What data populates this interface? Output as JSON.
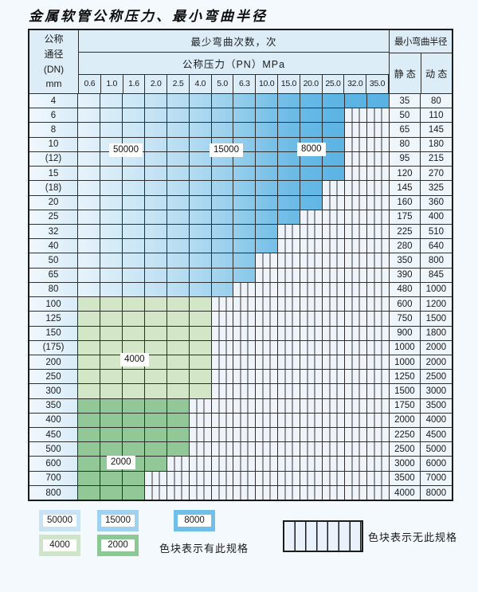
{
  "title": "金属软管公称压力、最小弯曲半径",
  "header": {
    "dn_lines": [
      "公称",
      "通径",
      "(DN)",
      "mm"
    ],
    "cycles_title": "最少弯曲次数，次",
    "pressure_title": "公称压力（PN）MPa",
    "pressures": [
      "0.6",
      "1.0",
      "1.6",
      "2.0",
      "2.5",
      "4.0",
      "5.0",
      "6.3",
      "10.0",
      "15.0",
      "20.0",
      "25.0",
      "32.0",
      "35.0"
    ],
    "radius_title": "最小弯曲半径",
    "static_label": "静 态",
    "dynamic_label": "动 态"
  },
  "colors": {
    "blue_boundaries": [
      "#e7f3fb",
      "#dceef9",
      "#d2eaf7",
      "#c8e5f5",
      "#bee0f3",
      "#b3dbf1",
      "#a6d5ef",
      "#97cfec",
      "#86c7ea",
      "#75bfe7",
      "#69bae6",
      "#60b6e4",
      "#5cb4e3",
      "#5ab3e3",
      "#58b2e2"
    ],
    "green_light": "#d3e6c8",
    "green_dark": "#92c897",
    "legend_blue_50000": "#c7e3f5",
    "legend_blue_15000": "#9fd2ef",
    "legend_blue_8000": "#6fbfe8",
    "legend_green_4000": "#cfe5ca",
    "legend_green_2000": "#8cc893",
    "hatch_bg": "#eef4fa",
    "grid": "#2e2e2e"
  },
  "rows": [
    {
      "dn": "4",
      "max_pn": "35.0",
      "shade": "blue",
      "static": "35",
      "dynamic": "80"
    },
    {
      "dn": "6",
      "max_pn": "25.0",
      "shade": "blue",
      "static": "50",
      "dynamic": "110"
    },
    {
      "dn": "8",
      "max_pn": "25.0",
      "shade": "blue",
      "static": "65",
      "dynamic": "145"
    },
    {
      "dn": "10",
      "max_pn": "25.0",
      "shade": "blue",
      "static": "80",
      "dynamic": "180"
    },
    {
      "dn": "(12)",
      "max_pn": "25.0",
      "shade": "blue",
      "static": "95",
      "dynamic": "215"
    },
    {
      "dn": "15",
      "max_pn": "25.0",
      "shade": "blue",
      "static": "120",
      "dynamic": "270"
    },
    {
      "dn": "(18)",
      "max_pn": "20.0",
      "shade": "blue",
      "static": "145",
      "dynamic": "325"
    },
    {
      "dn": "20",
      "max_pn": "20.0",
      "shade": "blue",
      "static": "160",
      "dynamic": "360"
    },
    {
      "dn": "25",
      "max_pn": "15.0",
      "shade": "blue",
      "static": "175",
      "dynamic": "400"
    },
    {
      "dn": "32",
      "max_pn": "10.0",
      "shade": "blue",
      "static": "225",
      "dynamic": "510"
    },
    {
      "dn": "40",
      "max_pn": "10.0",
      "shade": "blue",
      "static": "280",
      "dynamic": "640"
    },
    {
      "dn": "50",
      "max_pn": "6.3",
      "shade": "blue",
      "static": "350",
      "dynamic": "800"
    },
    {
      "dn": "65",
      "max_pn": "6.3",
      "shade": "blue",
      "static": "390",
      "dynamic": "845"
    },
    {
      "dn": "80",
      "max_pn": "5.0",
      "shade": "blue",
      "static": "480",
      "dynamic": "1000"
    },
    {
      "dn": "100",
      "max_pn": "4.0",
      "shade": "green_light",
      "static": "600",
      "dynamic": "1200"
    },
    {
      "dn": "125",
      "max_pn": "4.0",
      "shade": "green_light",
      "static": "750",
      "dynamic": "1500"
    },
    {
      "dn": "150",
      "max_pn": "4.0",
      "shade": "green_light",
      "static": "900",
      "dynamic": "1800"
    },
    {
      "dn": "(175)",
      "max_pn": "4.0",
      "shade": "green_light",
      "static": "1000",
      "dynamic": "2000"
    },
    {
      "dn": "200",
      "max_pn": "4.0",
      "shade": "green_light",
      "static": "1000",
      "dynamic": "2000"
    },
    {
      "dn": "250",
      "max_pn": "4.0",
      "shade": "green_light",
      "static": "1250",
      "dynamic": "2500"
    },
    {
      "dn": "300",
      "max_pn": "4.0",
      "shade": "green_light",
      "static": "1500",
      "dynamic": "3000"
    },
    {
      "dn": "350",
      "max_pn": "2.5",
      "shade": "green_dark",
      "static": "1750",
      "dynamic": "3500"
    },
    {
      "dn": "400",
      "max_pn": "2.5",
      "shade": "green_dark",
      "static": "2000",
      "dynamic": "4000"
    },
    {
      "dn": "450",
      "max_pn": "2.5",
      "shade": "green_dark",
      "static": "2250",
      "dynamic": "4500"
    },
    {
      "dn": "500",
      "max_pn": "2.5",
      "shade": "green_dark",
      "static": "2500",
      "dynamic": "5000"
    },
    {
      "dn": "600",
      "max_pn": "2.0",
      "shade": "green_dark",
      "static": "3000",
      "dynamic": "6000"
    },
    {
      "dn": "700",
      "max_pn": "1.6",
      "shade": "green_dark",
      "static": "3500",
      "dynamic": "7000"
    },
    {
      "dn": "800",
      "max_pn": "1.6",
      "shade": "green_dark",
      "static": "4000",
      "dynamic": "8000"
    }
  ],
  "overlay_labels": [
    {
      "text": "50000"
    },
    {
      "text": "15000"
    },
    {
      "text": "8000"
    },
    {
      "text": "4000"
    },
    {
      "text": "2000"
    }
  ],
  "legend": {
    "items": [
      {
        "label": "50000"
      },
      {
        "label": "15000"
      },
      {
        "label": "8000"
      },
      {
        "label": "4000"
      },
      {
        "label": "2000"
      }
    ],
    "has_spec_text": "色块表示有此规格",
    "no_spec_text": "色块表示无此规格"
  }
}
